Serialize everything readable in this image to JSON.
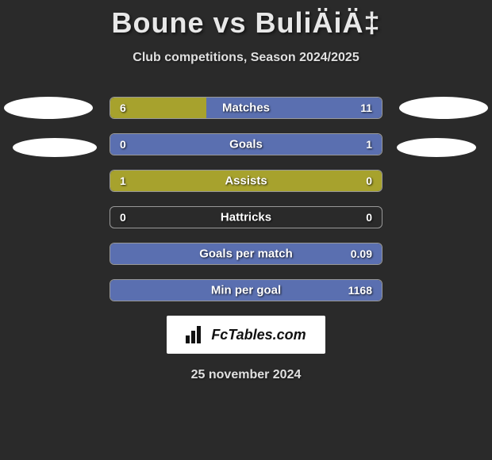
{
  "title": "Boune vs BuliÄiÄ‡",
  "subtitle": "Club competitions, Season 2024/2025",
  "date": "25 november 2024",
  "badge_text": "FcTables.com",
  "colors": {
    "left": "#a7a22d",
    "right": "#5a6fb0",
    "background": "#2a2a2a",
    "border": "#999999"
  },
  "stats": [
    {
      "label": "Matches",
      "left_val": "6",
      "right_val": "11",
      "left_pct": 35.3,
      "right_pct": 64.7
    },
    {
      "label": "Goals",
      "left_val": "0",
      "right_val": "1",
      "left_pct": 0,
      "right_pct": 100
    },
    {
      "label": "Assists",
      "left_val": "1",
      "right_val": "0",
      "left_pct": 100,
      "right_pct": 0
    },
    {
      "label": "Hattricks",
      "left_val": "0",
      "right_val": "0",
      "left_pct": 0,
      "right_pct": 0
    },
    {
      "label": "Goals per match",
      "left_val": "",
      "right_val": "0.09",
      "left_pct": 0,
      "right_pct": 100
    },
    {
      "label": "Min per goal",
      "left_val": "",
      "right_val": "1168",
      "left_pct": 0,
      "right_pct": 100
    }
  ]
}
